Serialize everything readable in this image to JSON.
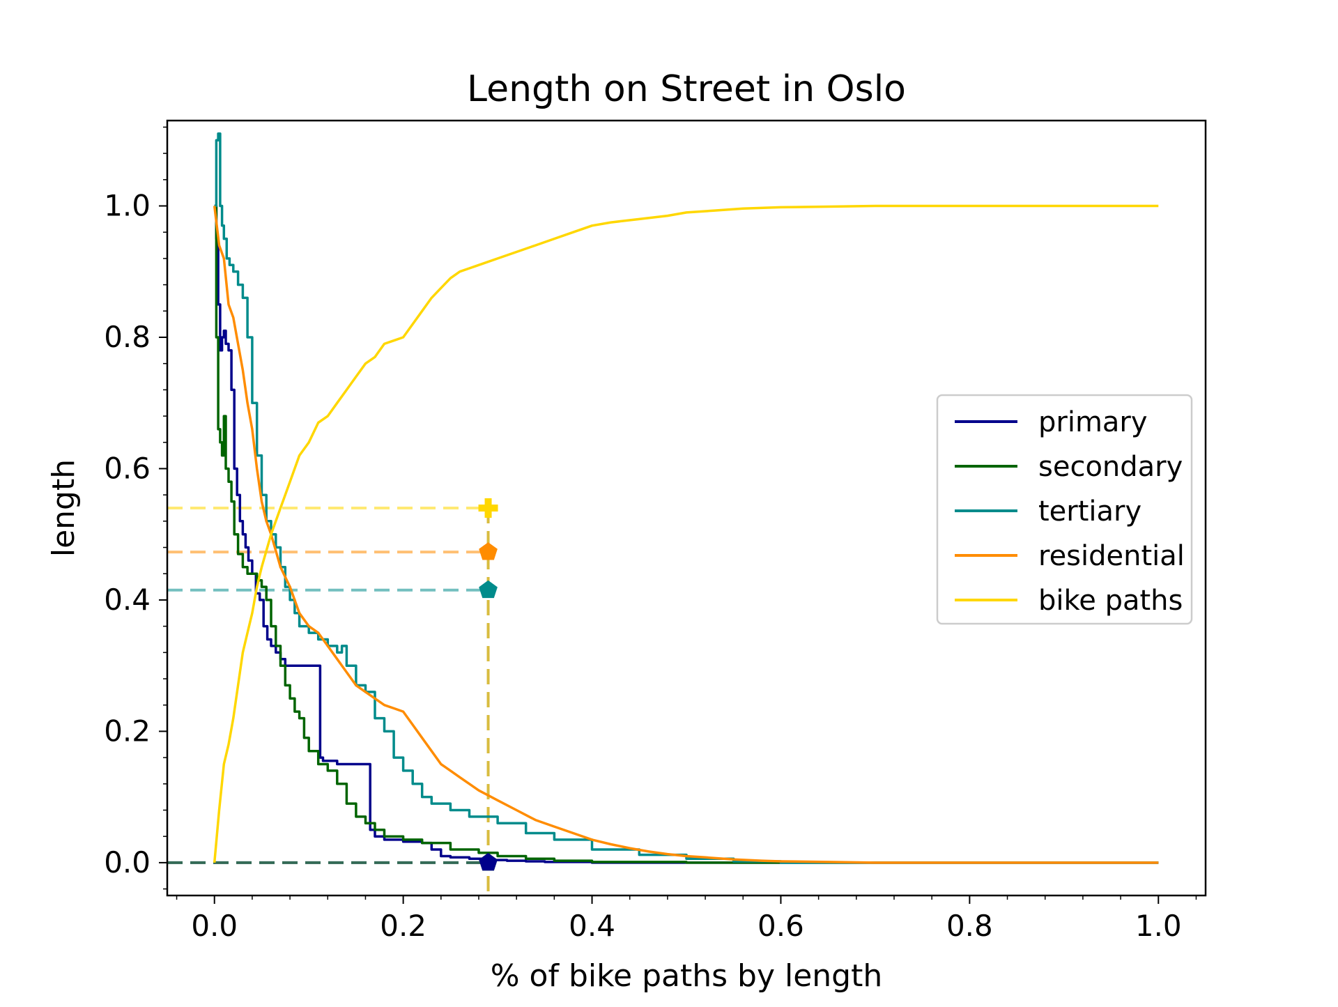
{
  "chart_data": {
    "type": "line",
    "title": "Length on Street in Oslo",
    "xlabel": "% of bike paths by length",
    "ylabel": "length",
    "xlim": [
      -0.05,
      1.05
    ],
    "ylim": [
      -0.05,
      1.13
    ],
    "xticks": [
      {
        "value": 0.0,
        "label": "0.0"
      },
      {
        "value": 0.2,
        "label": "0.2"
      },
      {
        "value": 0.4,
        "label": "0.4"
      },
      {
        "value": 0.6,
        "label": "0.6"
      },
      {
        "value": 0.8,
        "label": "0.8"
      },
      {
        "value": 1.0,
        "label": "1.0"
      }
    ],
    "yticks": [
      {
        "value": 0.0,
        "label": "0.0"
      },
      {
        "value": 0.2,
        "label": "0.2"
      },
      {
        "value": 0.4,
        "label": "0.4"
      },
      {
        "value": 0.6,
        "label": "0.6"
      },
      {
        "value": 0.8,
        "label": "0.8"
      },
      {
        "value": 1.0,
        "label": "1.0"
      }
    ],
    "grid": false,
    "legend_position": "center-right",
    "series": [
      {
        "name": "primary",
        "color": "#00008b",
        "step": true,
        "x": [
          0,
          0.002,
          0.004,
          0.006,
          0.008,
          0.01,
          0.012,
          0.015,
          0.018,
          0.021,
          0.024,
          0.027,
          0.03,
          0.033,
          0.036,
          0.04,
          0.044,
          0.048,
          0.052,
          0.056,
          0.06,
          0.065,
          0.07,
          0.075,
          0.08,
          0.085,
          0.09,
          0.1,
          0.11,
          0.112,
          0.115,
          0.12,
          0.13,
          0.14,
          0.15,
          0.16,
          0.165,
          0.17,
          0.18,
          0.2,
          0.22,
          0.23,
          0.24,
          0.25,
          0.27,
          0.29,
          0.31,
          0.33,
          0.35,
          0.4,
          0.5,
          0.6,
          0.7,
          0.8,
          0.9,
          1.0
        ],
        "y": [
          1.0,
          0.95,
          0.85,
          0.78,
          0.8,
          0.81,
          0.79,
          0.78,
          0.72,
          0.6,
          0.56,
          0.52,
          0.5,
          0.48,
          0.46,
          0.44,
          0.41,
          0.4,
          0.36,
          0.34,
          0.33,
          0.32,
          0.31,
          0.3,
          0.3,
          0.3,
          0.3,
          0.3,
          0.3,
          0.16,
          0.155,
          0.155,
          0.15,
          0.15,
          0.15,
          0.15,
          0.05,
          0.04,
          0.035,
          0.032,
          0.03,
          0.02,
          0.01,
          0.008,
          0.006,
          0.004,
          0.003,
          0.002,
          0.001,
          0.0,
          0.0,
          0.0,
          0.0,
          0.0,
          0.0,
          0.0
        ]
      },
      {
        "name": "secondary",
        "color": "#006400",
        "step": true,
        "x": [
          0,
          0.002,
          0.004,
          0.006,
          0.008,
          0.01,
          0.012,
          0.015,
          0.018,
          0.021,
          0.025,
          0.03,
          0.035,
          0.04,
          0.045,
          0.05,
          0.055,
          0.06,
          0.065,
          0.07,
          0.075,
          0.08,
          0.085,
          0.09,
          0.095,
          0.1,
          0.11,
          0.12,
          0.13,
          0.14,
          0.15,
          0.16,
          0.17,
          0.18,
          0.2,
          0.22,
          0.25,
          0.28,
          0.3,
          0.33,
          0.36,
          0.4,
          0.5,
          0.6,
          0.7,
          0.8,
          0.9,
          1.0
        ],
        "y": [
          1.0,
          0.8,
          0.66,
          0.64,
          0.62,
          0.68,
          0.6,
          0.58,
          0.55,
          0.5,
          0.47,
          0.45,
          0.44,
          0.44,
          0.43,
          0.42,
          0.4,
          0.36,
          0.33,
          0.3,
          0.27,
          0.25,
          0.23,
          0.22,
          0.19,
          0.17,
          0.15,
          0.14,
          0.12,
          0.09,
          0.07,
          0.06,
          0.05,
          0.04,
          0.035,
          0.03,
          0.02,
          0.015,
          0.01,
          0.006,
          0.003,
          0.001,
          0.0,
          0.0,
          0.0,
          0.0,
          0.0,
          0.0
        ]
      },
      {
        "name": "tertiary",
        "color": "#008b8b",
        "step": true,
        "x": [
          0,
          0.002,
          0.004,
          0.006,
          0.008,
          0.01,
          0.013,
          0.016,
          0.02,
          0.025,
          0.03,
          0.035,
          0.04,
          0.045,
          0.05,
          0.055,
          0.06,
          0.065,
          0.07,
          0.075,
          0.08,
          0.085,
          0.09,
          0.1,
          0.11,
          0.12,
          0.13,
          0.135,
          0.14,
          0.15,
          0.16,
          0.17,
          0.18,
          0.19,
          0.2,
          0.21,
          0.22,
          0.23,
          0.25,
          0.27,
          0.3,
          0.33,
          0.36,
          0.4,
          0.45,
          0.5,
          0.55,
          0.6,
          0.7,
          0.8,
          0.9,
          1.0
        ],
        "y": [
          1.0,
          1.1,
          1.11,
          1.0,
          0.97,
          0.95,
          0.92,
          0.91,
          0.9,
          0.88,
          0.86,
          0.8,
          0.7,
          0.62,
          0.56,
          0.52,
          0.5,
          0.48,
          0.45,
          0.42,
          0.4,
          0.38,
          0.36,
          0.35,
          0.34,
          0.33,
          0.32,
          0.33,
          0.3,
          0.27,
          0.26,
          0.22,
          0.2,
          0.16,
          0.14,
          0.12,
          0.1,
          0.09,
          0.08,
          0.07,
          0.06,
          0.045,
          0.035,
          0.02,
          0.012,
          0.006,
          0.002,
          0.0,
          0.0,
          0.0,
          0.0,
          0.0
        ]
      },
      {
        "name": "residential",
        "color": "#ff8c00",
        "step": false,
        "x": [
          0,
          0.005,
          0.01,
          0.015,
          0.02,
          0.025,
          0.03,
          0.035,
          0.04,
          0.045,
          0.05,
          0.055,
          0.06,
          0.07,
          0.08,
          0.09,
          0.1,
          0.11,
          0.12,
          0.13,
          0.14,
          0.15,
          0.16,
          0.17,
          0.18,
          0.19,
          0.2,
          0.21,
          0.22,
          0.23,
          0.24,
          0.25,
          0.26,
          0.27,
          0.28,
          0.3,
          0.32,
          0.34,
          0.36,
          0.38,
          0.4,
          0.42,
          0.44,
          0.46,
          0.48,
          0.5,
          0.52,
          0.55,
          0.58,
          0.6,
          0.65,
          0.7,
          0.8,
          0.9,
          1.0
        ],
        "y": [
          1.0,
          0.94,
          0.92,
          0.85,
          0.83,
          0.79,
          0.75,
          0.7,
          0.66,
          0.6,
          0.55,
          0.52,
          0.5,
          0.45,
          0.42,
          0.38,
          0.36,
          0.35,
          0.33,
          0.31,
          0.29,
          0.27,
          0.26,
          0.25,
          0.24,
          0.235,
          0.23,
          0.21,
          0.19,
          0.17,
          0.15,
          0.14,
          0.13,
          0.12,
          0.11,
          0.095,
          0.08,
          0.065,
          0.055,
          0.045,
          0.035,
          0.028,
          0.022,
          0.017,
          0.013,
          0.01,
          0.008,
          0.005,
          0.003,
          0.002,
          0.001,
          0.0,
          0.0,
          0.0,
          0.0
        ]
      },
      {
        "name": "bike paths",
        "color": "#ffd700",
        "step": false,
        "x": [
          0,
          0.005,
          0.01,
          0.015,
          0.02,
          0.025,
          0.03,
          0.035,
          0.04,
          0.045,
          0.05,
          0.06,
          0.07,
          0.08,
          0.09,
          0.1,
          0.11,
          0.12,
          0.13,
          0.14,
          0.15,
          0.16,
          0.17,
          0.18,
          0.19,
          0.2,
          0.21,
          0.22,
          0.23,
          0.24,
          0.25,
          0.26,
          0.27,
          0.28,
          0.3,
          0.32,
          0.34,
          0.36,
          0.38,
          0.4,
          0.42,
          0.45,
          0.48,
          0.5,
          0.53,
          0.56,
          0.6,
          0.65,
          0.7,
          0.8,
          0.9,
          1.0
        ],
        "y": [
          0.0,
          0.08,
          0.15,
          0.18,
          0.22,
          0.27,
          0.32,
          0.35,
          0.38,
          0.42,
          0.45,
          0.5,
          0.54,
          0.58,
          0.62,
          0.64,
          0.67,
          0.68,
          0.7,
          0.72,
          0.74,
          0.76,
          0.77,
          0.79,
          0.795,
          0.8,
          0.82,
          0.84,
          0.86,
          0.875,
          0.89,
          0.9,
          0.905,
          0.91,
          0.92,
          0.93,
          0.94,
          0.95,
          0.96,
          0.97,
          0.975,
          0.98,
          0.985,
          0.99,
          0.993,
          0.996,
          0.998,
          0.999,
          1.0,
          1.0,
          1.0,
          1.0
        ]
      }
    ],
    "reference_x": 0.29,
    "reference_markers": [
      {
        "series": "bike paths",
        "y": 0.54,
        "marker": "plus",
        "color": "#ffd700"
      },
      {
        "series": "residential",
        "y": 0.473,
        "marker": "pentagon",
        "color": "#ff8c00"
      },
      {
        "series": "tertiary",
        "y": 0.415,
        "marker": "pentagon",
        "color": "#008b8b"
      },
      {
        "series": "primary",
        "y": 0.0,
        "marker": "pentagon",
        "color": "#00008b"
      },
      {
        "series": "secondary",
        "y": 0.0,
        "marker": "pentagon",
        "color": "#006400"
      }
    ]
  }
}
